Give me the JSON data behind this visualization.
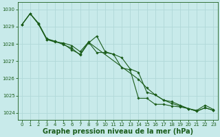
{
  "title": "Graphe pression niveau de la mer (hPa)",
  "background_color": "#c8eaea",
  "grid_color": "#b0d8d8",
  "line_color": "#1a5c1a",
  "xlim": [
    -0.5,
    23.5
  ],
  "ylim": [
    1023.6,
    1030.4
  ],
  "yticks": [
    1024,
    1025,
    1026,
    1027,
    1028,
    1029,
    1030
  ],
  "xticks": [
    0,
    1,
    2,
    3,
    4,
    5,
    6,
    7,
    8,
    9,
    10,
    11,
    12,
    13,
    14,
    15,
    16,
    17,
    18,
    19,
    20,
    21,
    22,
    23
  ],
  "series": [
    {
      "x": [
        0,
        1,
        2,
        3,
        4,
        5,
        6,
        7,
        8,
        9,
        10,
        11,
        12,
        13,
        14,
        15,
        16,
        17,
        18,
        19,
        20,
        21,
        22,
        23
      ],
      "y": [
        1029.1,
        1029.75,
        1029.2,
        1028.3,
        1028.15,
        1027.95,
        1027.75,
        1027.35,
        1028.05,
        1028.45,
        1027.55,
        1027.4,
        1027.2,
        1026.55,
        1026.35,
        1025.2,
        1025.05,
        1024.75,
        1024.65,
        1024.45,
        1024.25,
        1024.15,
        1024.45,
        1024.2
      ]
    },
    {
      "x": [
        0,
        1,
        2,
        3,
        4,
        5,
        6,
        7,
        8,
        14,
        15,
        16,
        17,
        18,
        19,
        20,
        21,
        22,
        23
      ],
      "y": [
        1029.1,
        1029.75,
        1029.15,
        1028.25,
        1028.1,
        1028.05,
        1027.9,
        1027.55,
        1028.1,
        1025.95,
        1025.45,
        1025.05,
        1024.75,
        1024.55,
        1024.4,
        1024.25,
        1024.1,
        1024.3,
        1024.15
      ]
    },
    {
      "x": [
        0,
        1,
        2,
        3,
        4,
        5,
        6,
        7,
        8,
        9,
        10,
        11,
        12,
        13,
        14,
        15,
        16,
        17,
        18,
        19,
        20,
        21,
        22,
        23
      ],
      "y": [
        1029.1,
        1029.75,
        1029.15,
        1028.25,
        1028.15,
        1028.0,
        1027.65,
        1027.4,
        1028.1,
        1027.5,
        1027.5,
        1027.4,
        1026.6,
        1026.5,
        1024.85,
        1024.85,
        1024.5,
        1024.5,
        1024.4,
        1024.35,
        1024.25,
        1024.1,
        1024.3,
        1024.15
      ]
    }
  ],
  "figsize": [
    3.2,
    2.0
  ],
  "dpi": 100,
  "title_fontsize": 7,
  "tick_fontsize": 5
}
